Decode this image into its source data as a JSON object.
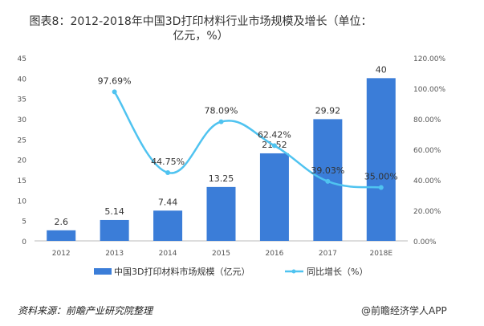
{
  "title": "图表8：2012-2018年中国3D打印材料行业市场规模及增长（单位：亿元，%）",
  "source": "资料来源：前瞻产业研究院整理",
  "credit": "@前瞻经济学人APP",
  "colors": {
    "bar": "#3b7dd8",
    "line": "#4fc3f0",
    "text": "#333333"
  },
  "chart_data": {
    "type": "bar+line",
    "categories": [
      "2012",
      "2013",
      "2014",
      "2015",
      "2016",
      "2017",
      "2018E"
    ],
    "series": [
      {
        "name": "中国3D打印材料市场规模（亿元）",
        "type": "bar",
        "axis": "left",
        "values": [
          2.6,
          5.14,
          7.44,
          13.25,
          21.52,
          29.92,
          40
        ],
        "labels": [
          "2.6",
          "5.14",
          "7.44",
          "13.25",
          "21.52",
          "29.92",
          "40"
        ]
      },
      {
        "name": "同比增长（%）",
        "type": "line",
        "axis": "right",
        "smooth": true,
        "values": [
          null,
          97.69,
          44.75,
          78.09,
          62.42,
          39.03,
          35.0
        ],
        "labels": [
          "",
          "97.69%",
          "44.75%",
          "78.09%",
          "62.42%",
          "39.03%",
          "35.00%"
        ]
      }
    ],
    "y_left": {
      "range": [
        0,
        45
      ],
      "ticks": [
        "0",
        "5",
        "10",
        "15",
        "20",
        "25",
        "30",
        "35",
        "40",
        "45"
      ]
    },
    "y_right": {
      "range": [
        0,
        120
      ],
      "ticks": [
        "0.00%",
        "20.00%",
        "40.00%",
        "60.00%",
        "80.00%",
        "100.00%",
        "120.00%"
      ]
    },
    "grid": false,
    "legend": "bottom"
  }
}
